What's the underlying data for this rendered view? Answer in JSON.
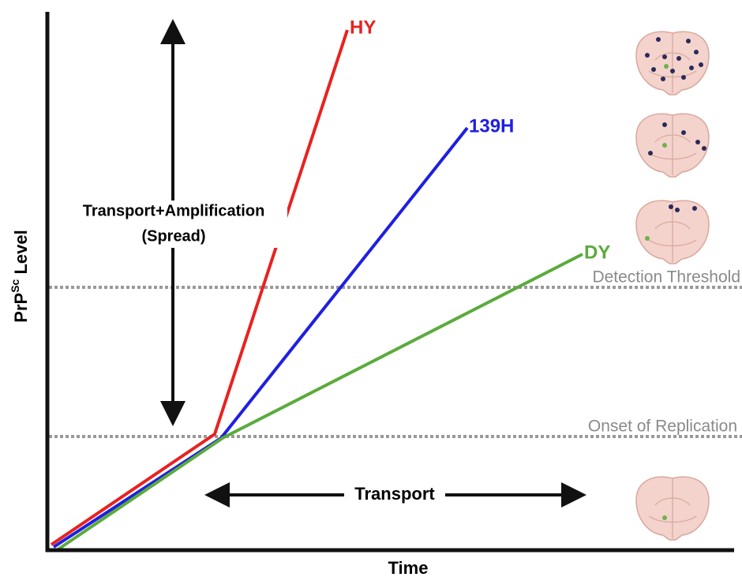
{
  "axes": {
    "y_label": "PrP",
    "y_label_sup": "Sc",
    "y_label_rest": " Level",
    "x_label": "Time"
  },
  "lines": [
    {
      "label": "HY",
      "color": "#e8221f"
    },
    {
      "label": "139H",
      "color": "#1f1fe0"
    },
    {
      "label": "DY",
      "color": "#5aab3c"
    }
  ],
  "thresholds": [
    {
      "label": "Detection Threshold"
    },
    {
      "label": "Onset of Replication"
    }
  ],
  "annotations": {
    "spread_line1": "Transport+Amplification",
    "spread_line2": "(Spread)",
    "transport": "Transport"
  }
}
